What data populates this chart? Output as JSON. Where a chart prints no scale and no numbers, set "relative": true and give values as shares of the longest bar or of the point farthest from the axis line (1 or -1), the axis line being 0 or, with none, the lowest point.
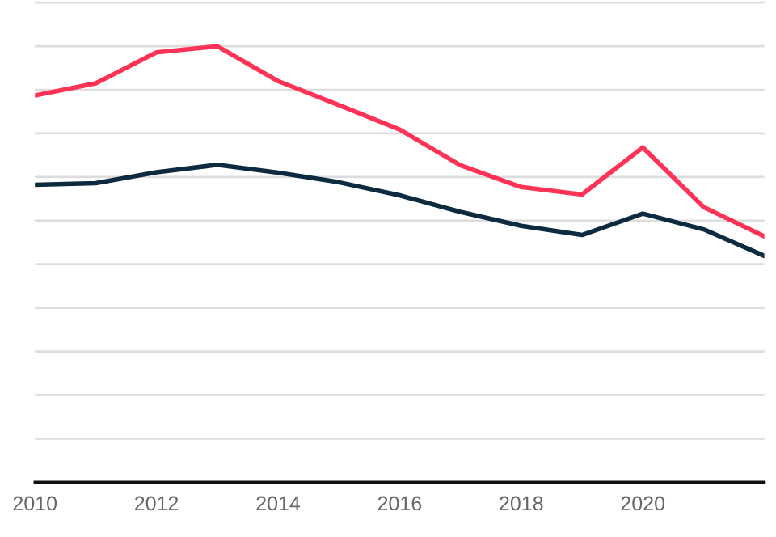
{
  "chart_data": {
    "type": "line",
    "relative": true,
    "x": [
      2010,
      2011,
      2012,
      2013,
      2014,
      2015,
      2016,
      2017,
      2018,
      2019,
      2020,
      2021,
      2022
    ],
    "xlim": [
      2010,
      2022
    ],
    "xticks": [
      2010,
      2012,
      2014,
      2016,
      2018,
      2020
    ],
    "series": [
      {
        "color": "#ff3355",
        "values": [
          0.887,
          0.915,
          0.986,
          1.0,
          0.92,
          0.865,
          0.809,
          0.727,
          0.677,
          0.66,
          0.768,
          0.631,
          0.564
        ]
      },
      {
        "color": "#0d2b3e",
        "values": [
          0.682,
          0.686,
          0.711,
          0.728,
          0.71,
          0.688,
          0.658,
          0.62,
          0.588,
          0.567,
          0.616,
          0.58,
          0.519
        ]
      }
    ],
    "grid": "y",
    "legend": false,
    "marker": "none",
    "line_style": "solid",
    "tick_labels": "x"
  }
}
